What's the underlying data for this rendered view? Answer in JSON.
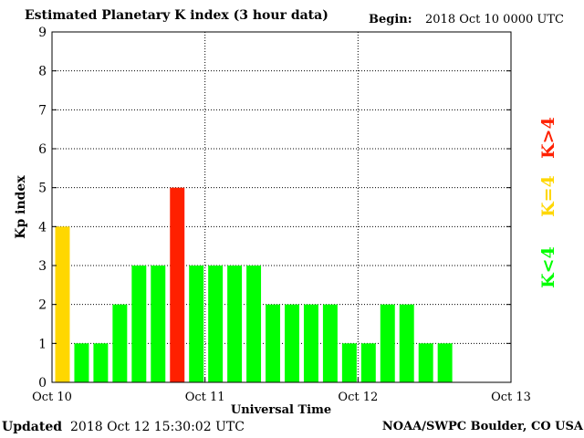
{
  "header": {
    "title": "Estimated Planetary K index (3 hour data)",
    "begin_label": "Begin:",
    "begin_value": "2018 Oct 10 0000 UTC"
  },
  "footer": {
    "updated_label": "Updated",
    "updated_value": "2018 Oct 12 15:30:02 UTC",
    "credit": "NOAA/SWPC Boulder, CO USA"
  },
  "legend": {
    "k_lt4": "K<4",
    "k_eq4": "K=4",
    "k_gt4": "K>4"
  },
  "colors": {
    "k_lt4": "#00ff00",
    "k_eq4": "#ffd700",
    "k_gt4": "#ff2000"
  },
  "chart_data": {
    "type": "bar",
    "title": "Estimated Planetary K index (3 hour data)",
    "xlabel": "Universal Time",
    "ylabel": "Kp index",
    "ylim": [
      0,
      9
    ],
    "yticks": [
      "0",
      "1",
      "2",
      "3",
      "4",
      "5",
      "6",
      "7",
      "8",
      "9"
    ],
    "xticks": [
      "Oct 10",
      "Oct 11",
      "Oct 12",
      "Oct 13"
    ],
    "bins_per_day": 8,
    "days": 3,
    "grid": true,
    "values": [
      4,
      1,
      1,
      2,
      3,
      3,
      5,
      3,
      3,
      3,
      3,
      2,
      2,
      2,
      2,
      1,
      1,
      2,
      2,
      1,
      1
    ]
  }
}
